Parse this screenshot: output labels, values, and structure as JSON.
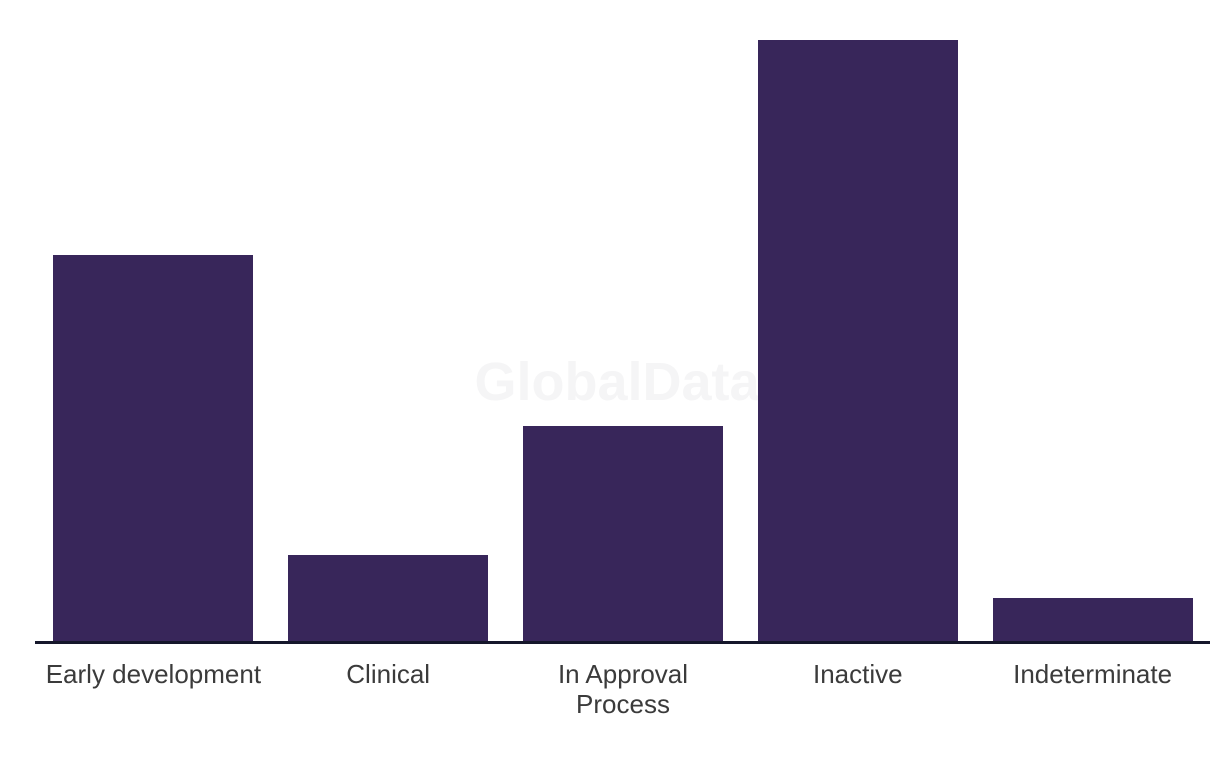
{
  "watermark": {
    "text": "GlobalData",
    "color": "#f5f5f6"
  },
  "chart_data": {
    "type": "bar",
    "categories": [
      "Early development",
      "Clinical",
      "In Approval Process",
      "Inactive",
      "Indeterminate"
    ],
    "values": [
      9,
      2,
      5,
      14,
      1
    ],
    "title": "",
    "xlabel": "",
    "ylabel": "",
    "ylim": [
      0,
      14
    ],
    "grid": false,
    "legend": false,
    "value_axis_hidden": true,
    "category_axis_line_shown": true,
    "bar_color": "#38265a",
    "axis_line_color": "#15172b",
    "label_color": "#3b3b3b"
  }
}
